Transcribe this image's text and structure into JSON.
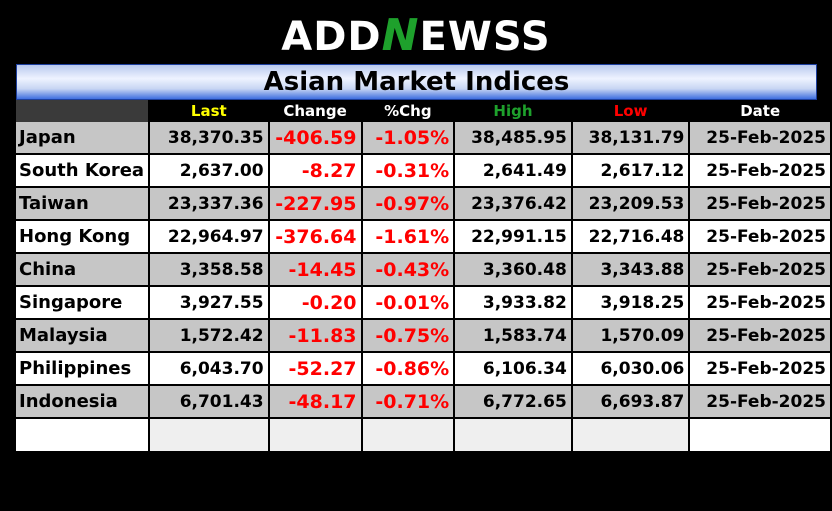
{
  "logo": {
    "part1": "ADD",
    "part2": "N",
    "part3": "EWSS"
  },
  "title": "Asian Market Indices",
  "colors": {
    "last": "#ffff00",
    "change": "#ffffff",
    "pct": "#ffffff",
    "high": "#1ea12c",
    "low": "#ff0000",
    "date": "#ffffff",
    "negative": "#ff0000"
  },
  "headers": [
    "Last",
    "Change",
    "%Chg",
    "High",
    "Low",
    "Date"
  ],
  "rows": [
    {
      "name": "Japan",
      "last": "38,370.35",
      "change": "-406.59",
      "pct": "-1.05%",
      "high": "38,485.95",
      "low": "38,131.79",
      "date": "25-Feb-2025"
    },
    {
      "name": "South Korea",
      "last": "2,637.00",
      "change": "-8.27",
      "pct": "-0.31%",
      "high": "2,641.49",
      "low": "2,617.12",
      "date": "25-Feb-2025"
    },
    {
      "name": "Taiwan",
      "last": "23,337.36",
      "change": "-227.95",
      "pct": "-0.97%",
      "high": "23,376.42",
      "low": "23,209.53",
      "date": "25-Feb-2025"
    },
    {
      "name": "Hong Kong",
      "last": "22,964.97",
      "change": "-376.64",
      "pct": "-1.61%",
      "high": "22,991.15",
      "low": "22,716.48",
      "date": "25-Feb-2025"
    },
    {
      "name": "China",
      "last": "3,358.58",
      "change": "-14.45",
      "pct": "-0.43%",
      "high": "3,360.48",
      "low": "3,343.88",
      "date": "25-Feb-2025"
    },
    {
      "name": "Singapore",
      "last": "3,927.55",
      "change": "-0.20",
      "pct": "-0.01%",
      "high": "3,933.82",
      "low": "3,918.25",
      "date": "25-Feb-2025"
    },
    {
      "name": "Malaysia",
      "last": "1,572.42",
      "change": "-11.83",
      "pct": "-0.75%",
      "high": "1,583.74",
      "low": "1,570.09",
      "date": "25-Feb-2025"
    },
    {
      "name": "Philippines",
      "last": "6,043.70",
      "change": "-52.27",
      "pct": "-0.86%",
      "high": "6,106.34",
      "low": "6,030.06",
      "date": "25-Feb-2025"
    },
    {
      "name": "Indonesia",
      "last": "6,701.43",
      "change": "-48.17",
      "pct": "-0.71%",
      "high": "6,772.65",
      "low": "6,693.87",
      "date": "25-Feb-2025"
    }
  ]
}
